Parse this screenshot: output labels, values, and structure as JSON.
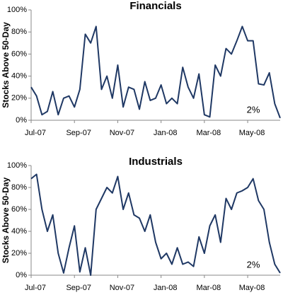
{
  "chart_data": [
    {
      "type": "line",
      "title": "Financials",
      "y_label": "Stocks Above 50-Day",
      "annotation": "2%",
      "x": [
        0,
        0.25,
        0.5,
        0.75,
        1,
        1.25,
        1.5,
        1.75,
        2,
        2.25,
        2.5,
        2.75,
        3,
        3.25,
        3.5,
        3.75,
        4,
        4.25,
        4.5,
        4.75,
        5,
        5.25,
        5.5,
        5.75,
        6,
        6.25,
        6.5,
        6.75,
        7,
        7.25,
        7.5,
        7.75,
        8,
        8.25,
        8.5,
        8.75,
        9,
        9.25,
        9.5,
        9.75,
        10,
        10.25,
        10.5,
        10.75,
        11,
        11.25,
        11.5
      ],
      "series": [
        {
          "name": "Financials",
          "color": "#1f3864",
          "values": [
            30,
            22,
            5,
            8,
            26,
            5,
            20,
            22,
            12,
            28,
            78,
            70,
            85,
            28,
            40,
            20,
            50,
            12,
            30,
            28,
            10,
            35,
            18,
            20,
            32,
            15,
            20,
            15,
            48,
            30,
            20,
            42,
            5,
            3,
            50,
            40,
            65,
            60,
            72,
            85,
            72,
            72,
            33,
            32,
            43,
            15,
            2
          ]
        }
      ],
      "xlim": [
        0,
        11.5
      ],
      "xticks": [
        {
          "value": 0,
          "label": "Jul-07"
        },
        {
          "value": 2,
          "label": "Sep-07"
        },
        {
          "value": 4,
          "label": "Nov-07"
        },
        {
          "value": 6,
          "label": "Jan-08"
        },
        {
          "value": 8,
          "label": "Mar-08"
        },
        {
          "value": 10,
          "label": "May-08"
        }
      ],
      "ylim": [
        0,
        100
      ],
      "yticks": [
        {
          "value": 0,
          "label": "0%"
        },
        {
          "value": 20,
          "label": "20%"
        },
        {
          "value": 40,
          "label": "40%"
        },
        {
          "value": 60,
          "label": "60%"
        },
        {
          "value": 80,
          "label": "80%"
        },
        {
          "value": 100,
          "label": "100%"
        }
      ]
    },
    {
      "type": "line",
      "title": "Industrials",
      "y_label": "Stocks Above 50-Day",
      "annotation": "2%",
      "x": [
        0,
        0.25,
        0.5,
        0.75,
        1,
        1.25,
        1.5,
        1.75,
        2,
        2.25,
        2.5,
        2.75,
        3,
        3.25,
        3.5,
        3.75,
        4,
        4.25,
        4.5,
        4.75,
        5,
        5.25,
        5.5,
        5.75,
        6,
        6.25,
        6.5,
        6.75,
        7,
        7.25,
        7.5,
        7.75,
        8,
        8.25,
        8.5,
        8.75,
        9,
        9.25,
        9.5,
        9.75,
        10,
        10.25,
        10.5,
        10.75,
        11,
        11.25,
        11.5
      ],
      "series": [
        {
          "name": "Industrials",
          "color": "#1f3864",
          "values": [
            88,
            92,
            60,
            40,
            55,
            20,
            2,
            25,
            45,
            3,
            25,
            0,
            60,
            70,
            80,
            75,
            90,
            60,
            75,
            55,
            52,
            40,
            55,
            30,
            15,
            20,
            10,
            25,
            10,
            12,
            8,
            35,
            20,
            45,
            55,
            30,
            70,
            60,
            75,
            77,
            80,
            88,
            68,
            60,
            30,
            10,
            2
          ]
        }
      ],
      "xlim": [
        0,
        11.5
      ],
      "xticks": [
        {
          "value": 0,
          "label": "Jul-07"
        },
        {
          "value": 2,
          "label": "Sep-07"
        },
        {
          "value": 4,
          "label": "Nov-07"
        },
        {
          "value": 6,
          "label": "Jan-08"
        },
        {
          "value": 8,
          "label": "Mar-08"
        },
        {
          "value": 10,
          "label": "May-08"
        }
      ],
      "ylim": [
        0,
        100
      ],
      "yticks": [
        {
          "value": 0,
          "label": "0%"
        },
        {
          "value": 20,
          "label": "20%"
        },
        {
          "value": 40,
          "label": "40%"
        },
        {
          "value": 60,
          "label": "60%"
        },
        {
          "value": 80,
          "label": "80%"
        },
        {
          "value": 100,
          "label": "100%"
        }
      ]
    }
  ]
}
